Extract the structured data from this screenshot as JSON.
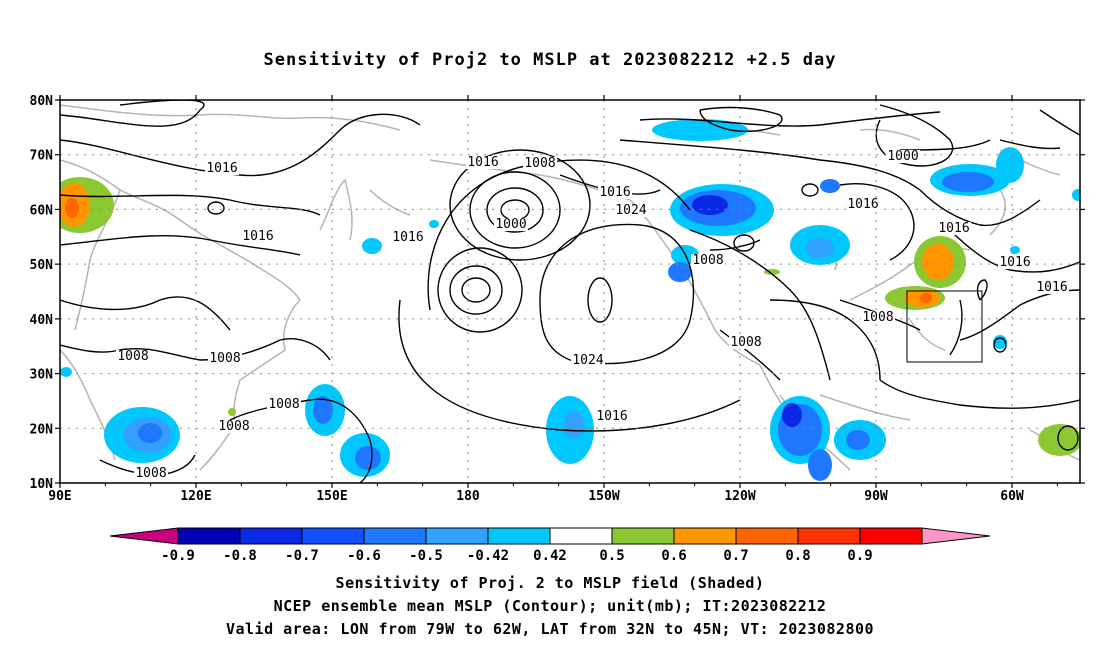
{
  "title": "Sensitivity of Proj2 to MSLP at 2023082212 +2.5 day",
  "map": {
    "lat_ticks": [
      "80N",
      "70N",
      "60N",
      "50N",
      "40N",
      "30N",
      "20N",
      "10N"
    ],
    "lon_ticks": [
      "90E",
      "120E",
      "150E",
      "180",
      "150W",
      "120W",
      "90W",
      "60W"
    ],
    "contour_labels": [
      "1016",
      "1016",
      "1016",
      "1008",
      "1016",
      "1000",
      "1016",
      "1024",
      "1000",
      "1016",
      "1016",
      "1008",
      "1016",
      "1016",
      "1008",
      "1008",
      "1008",
      "1008",
      "1024",
      "1008",
      "1008",
      "1016",
      "1008"
    ],
    "valid_box": {
      "lon_from": "79W",
      "lon_to": "62W",
      "lat_from": "32N",
      "lat_to": "45N"
    }
  },
  "colorbar": {
    "labels": [
      "-0.9",
      "-0.8",
      "-0.7",
      "-0.6",
      "-0.5",
      "-0.42",
      "0.42",
      "0.5",
      "0.6",
      "0.7",
      "0.8",
      "0.9"
    ],
    "colors": [
      "#c8007c",
      "#0000b4",
      "#0a28e6",
      "#1450ff",
      "#1e78ff",
      "#32a0ff",
      "#00c8ff",
      "#ffffff",
      "#8cc832",
      "#ff9600",
      "#ff6400",
      "#ff3200",
      "#ff0000",
      "#ff96c8"
    ]
  },
  "captions": {
    "line1": "Sensitivity of Proj. 2 to MSLP field (Shaded)",
    "line2": "NCEP ensemble mean MSLP (Contour); unit(mb); IT:2023082212",
    "line3": "Valid area: LON from 79W to 62W, LAT from 32N to 45N; VT: 2023082800"
  }
}
